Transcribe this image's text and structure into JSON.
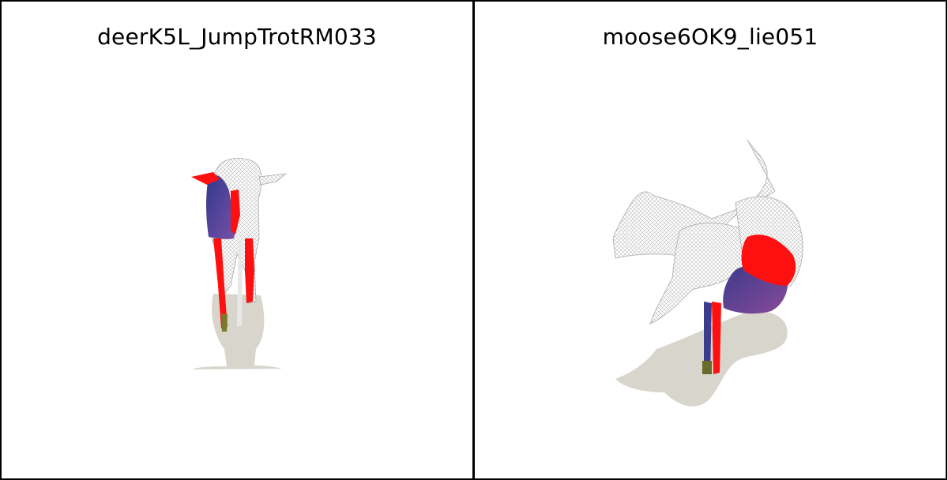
{
  "panels": [
    {
      "title": "deerK5L_JumpTrotRM033"
    },
    {
      "title": "moose6OK9_lie051"
    }
  ],
  "colors": {
    "shadow": "#d8d5cc",
    "highlight": "#ff0000",
    "body": "#3f3f8c",
    "wireframe": "#c8c8c8"
  }
}
